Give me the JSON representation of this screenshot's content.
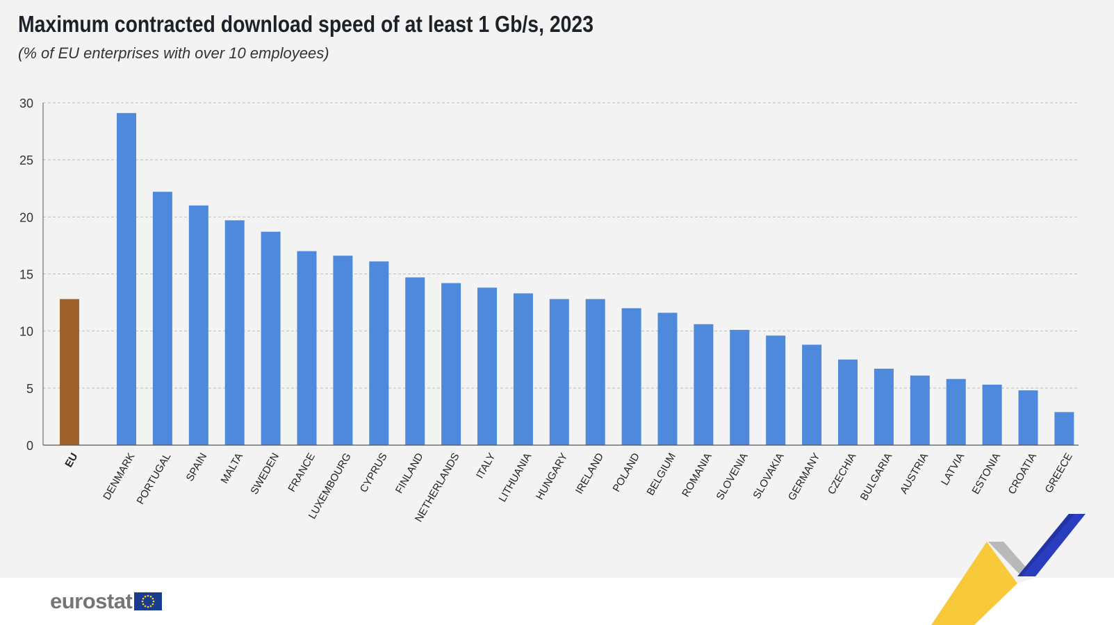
{
  "colors": {
    "eu": "#a0612d",
    "country": "#4f89dc",
    "grid": "#bdbdbd",
    "axis": "#555555"
  },
  "logo": {
    "text": "eurostat",
    "icon": "eu-flag-icon"
  },
  "chart_data": {
    "type": "bar",
    "title": "Maximum contracted download speed of at least 1 Gb/s, 2023",
    "subtitle": "(% of EU enterprises with over 10 employees)",
    "xlabel": "",
    "ylabel": "",
    "ylim": [
      0,
      30
    ],
    "yticks": [
      0,
      5,
      10,
      15,
      20,
      25,
      30
    ],
    "grid": true,
    "categories": [
      "EU",
      "DENMARK",
      "PORTUGAL",
      "SPAIN",
      "MALTA",
      "SWEDEN",
      "FRANCE",
      "LUXEMBOURG",
      "CYPRUS",
      "FINLAND",
      "NETHERLANDS",
      "ITALY",
      "LITHUANIA",
      "HUNGARY",
      "IRELAND",
      "POLAND",
      "BELGIUM",
      "ROMANIA",
      "SLOVENIA",
      "SLOVAKIA",
      "GERMANY",
      "CZECHIA",
      "BULGARIA",
      "AUSTRIA",
      "LATVIA",
      "ESTONIA",
      "CROATIA",
      "GREECE"
    ],
    "values": [
      12.8,
      29.1,
      22.2,
      21.0,
      19.7,
      18.7,
      17.0,
      16.6,
      16.1,
      14.7,
      14.2,
      13.8,
      13.3,
      12.8,
      12.8,
      12.0,
      11.6,
      10.6,
      10.1,
      9.6,
      8.8,
      7.5,
      6.7,
      6.1,
      5.8,
      5.3,
      4.8,
      2.9
    ]
  }
}
